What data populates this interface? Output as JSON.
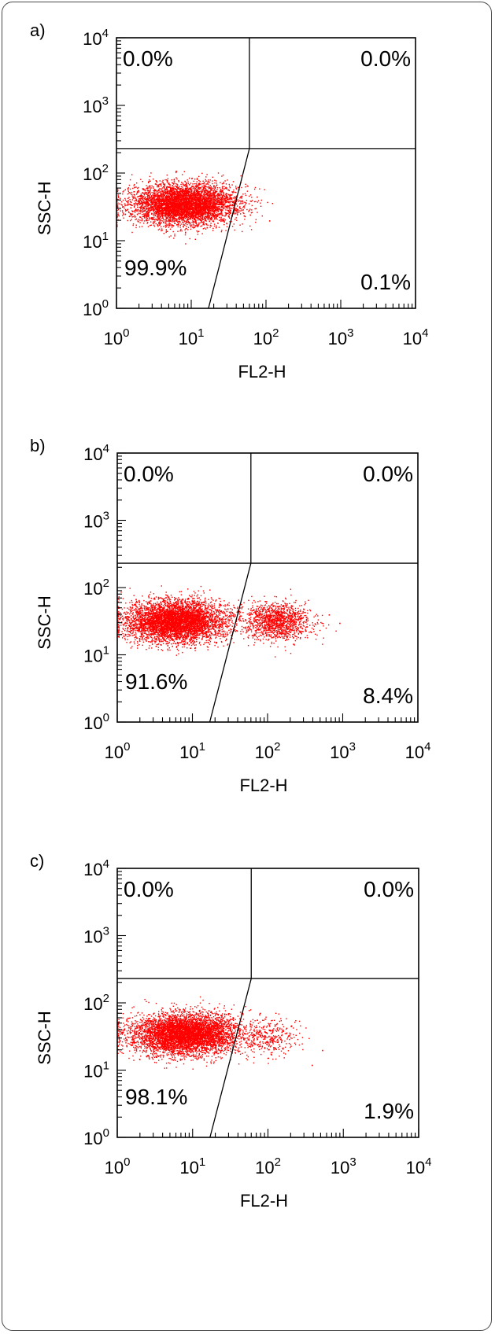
{
  "chart_data": [
    {
      "type": "scatter",
      "panel_label": "a)",
      "xlabel": "FL2-H",
      "ylabel": "SSC-H",
      "xscale": "log",
      "yscale": "log",
      "xlim": [
        1,
        10000
      ],
      "ylim": [
        1,
        10000
      ],
      "x_ticks": [
        "10^0",
        "10^1",
        "10^2",
        "10^3",
        "10^4"
      ],
      "y_ticks": [
        "10^0",
        "10^1",
        "10^2",
        "10^3",
        "10^4"
      ],
      "quadrant_percent": {
        "upper_left": "0.0%",
        "upper_right": "0.0%",
        "lower_left": "99.9%",
        "lower_right": "0.1%"
      },
      "gate": {
        "horizontal_y": 230,
        "vertical_x": 60,
        "diagonal": [
          [
            17,
            1
          ],
          [
            60,
            230
          ]
        ]
      },
      "clusters": [
        {
          "center_x": 8,
          "center_y": 35,
          "spread_x": 0.35,
          "spread_y": 0.15,
          "count": 5200
        }
      ],
      "outliers": [
        [
          110,
          20
        ],
        [
          75,
          45
        ]
      ]
    },
    {
      "type": "scatter",
      "panel_label": "b)",
      "xlabel": "FL2-H",
      "ylabel": "SSC-H",
      "xscale": "log",
      "yscale": "log",
      "xlim": [
        1,
        10000
      ],
      "ylim": [
        1,
        10000
      ],
      "x_ticks": [
        "10^0",
        "10^1",
        "10^2",
        "10^3",
        "10^4"
      ],
      "y_ticks": [
        "10^0",
        "10^1",
        "10^2",
        "10^3",
        "10^4"
      ],
      "quadrant_percent": {
        "upper_left": "0.0%",
        "upper_right": "0.0%",
        "lower_left": "91.6%",
        "lower_right": "8.4%"
      },
      "gate": {
        "horizontal_y": 230,
        "vertical_x": 60,
        "diagonal": [
          [
            17,
            1
          ],
          [
            60,
            230
          ]
        ]
      },
      "clusters": [
        {
          "center_x": 6,
          "center_y": 32,
          "spread_x": 0.33,
          "spread_y": 0.15,
          "count": 5000
        },
        {
          "center_x": 130,
          "center_y": 32,
          "spread_x": 0.22,
          "spread_y": 0.14,
          "count": 1300
        }
      ],
      "outliers": [
        [
          650,
          40
        ],
        [
          900,
          30
        ]
      ]
    },
    {
      "type": "scatter",
      "panel_label": "c)",
      "xlabel": "FL2-H",
      "ylabel": "SSC-H",
      "xscale": "log",
      "yscale": "log",
      "xlim": [
        1,
        10000
      ],
      "ylim": [
        1,
        10000
      ],
      "x_ticks": [
        "10^0",
        "10^1",
        "10^2",
        "10^3",
        "10^4"
      ],
      "y_ticks": [
        "10^0",
        "10^1",
        "10^2",
        "10^3",
        "10^4"
      ],
      "quadrant_percent": {
        "upper_left": "0.0%",
        "upper_right": "0.0%",
        "lower_left": "98.1%",
        "lower_right": "1.9%"
      },
      "gate": {
        "horizontal_y": 230,
        "vertical_x": 60,
        "diagonal": [
          [
            17,
            1
          ],
          [
            60,
            230
          ]
        ]
      },
      "clusters": [
        {
          "center_x": 8,
          "center_y": 35,
          "spread_x": 0.35,
          "spread_y": 0.15,
          "count": 5300
        },
        {
          "center_x": 100,
          "center_y": 32,
          "spread_x": 0.2,
          "spread_y": 0.14,
          "count": 350
        }
      ],
      "outliers": [
        [
          520,
          20
        ],
        [
          380,
          12
        ]
      ]
    }
  ],
  "colors": {
    "dots": "#ff0000",
    "axes": "#000000",
    "frame": "#4a4a4a"
  }
}
